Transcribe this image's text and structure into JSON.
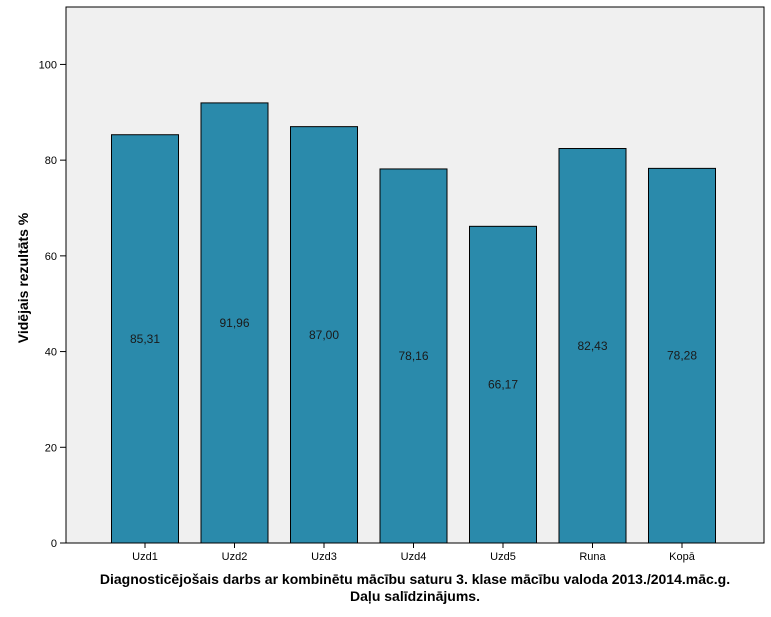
{
  "chart_data": {
    "type": "bar",
    "categories": [
      "Uzd1",
      "Uzd2",
      "Uzd3",
      "Uzd4",
      "Uzd5",
      "Runa",
      "Kopā"
    ],
    "values": [
      85.31,
      91.96,
      87.0,
      78.16,
      66.17,
      82.43,
      78.28
    ],
    "value_labels": [
      "85,31",
      "91,96",
      "87,00",
      "78,16",
      "66,17",
      "82,43",
      "78,28"
    ],
    "ylabel": "Vidējais rezultāts %",
    "xlabel_line1": "Diagnosticējošais darbs ar kombinētu mācību saturu 3. klase mācību valoda 2013./2014.māc.g.",
    "xlabel_line2": "Daļu salīdzinājums.",
    "ylim": [
      0,
      112
    ],
    "yticks": [
      0,
      20,
      40,
      60,
      80,
      100
    ],
    "grid": false,
    "bar_color": "#2a8aab",
    "plot_background": "#f0f0f0"
  }
}
